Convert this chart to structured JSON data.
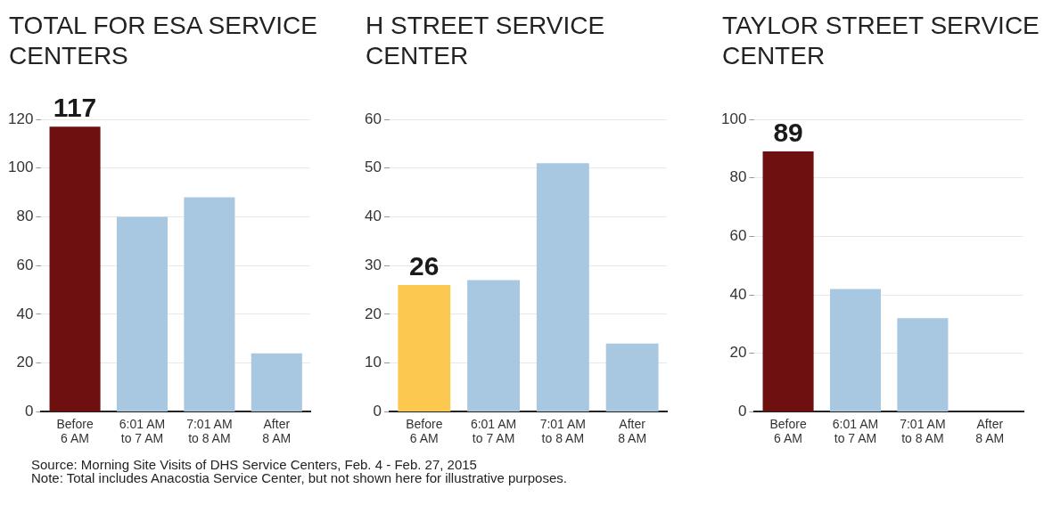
{
  "chart_data": [
    {
      "type": "bar",
      "title": "TOTAL FOR ESA SERVICE CENTERS",
      "categories": [
        "Before\n6 AM",
        "6:01 AM\nto 7 AM",
        "7:01 AM\nto 8 AM",
        "After\n8 AM"
      ],
      "values": [
        117,
        80,
        88,
        24
      ],
      "colors": [
        "#6e0f10",
        "#a8c7e0",
        "#a8c7e0",
        "#a8c7e0"
      ],
      "value_labels": [
        "117",
        null,
        null,
        null
      ],
      "ylim": [
        0,
        120
      ],
      "yticks": [
        0,
        20,
        40,
        60,
        80,
        100,
        120
      ],
      "grid": "y",
      "legend": false,
      "annotations": [
        "Source: Morning Site Visits of DHS Service Centers, Feb. 4 - Feb. 27, 2015",
        "Note: Total includes Anacostia Service Center, but not shown here for illustrative purposes."
      ]
    },
    {
      "type": "bar",
      "title": "H STREET SERVICE CENTER",
      "categories": [
        "Before\n6 AM",
        "6:01 AM\nto 7 AM",
        "7:01 AM\nto 8 AM",
        "After\n8 AM"
      ],
      "values": [
        26,
        27,
        51,
        14
      ],
      "colors": [
        "#fcc850",
        "#a8c7e0",
        "#a8c7e0",
        "#a8c7e0"
      ],
      "value_labels": [
        "26",
        null,
        null,
        null
      ],
      "ylim": [
        0,
        60
      ],
      "yticks": [
        0,
        10,
        20,
        30,
        40,
        50,
        60
      ],
      "grid": "y",
      "legend": false
    },
    {
      "type": "bar",
      "title": "TAYLOR STREET SERVICE CENTER",
      "categories": [
        "Before\n6 AM",
        "6:01 AM\nto 7 AM",
        "7:01 AM\nto 8 AM",
        "After\n8 AM"
      ],
      "values": [
        89,
        42,
        32,
        0
      ],
      "colors": [
        "#6e0f10",
        "#a8c7e0",
        "#a8c7e0",
        "#a8c7e0"
      ],
      "value_labels": [
        "89",
        null,
        null,
        null
      ],
      "ylim": [
        0,
        100
      ],
      "yticks": [
        0,
        20,
        40,
        60,
        80,
        100
      ],
      "grid": "y",
      "legend": false
    }
  ]
}
